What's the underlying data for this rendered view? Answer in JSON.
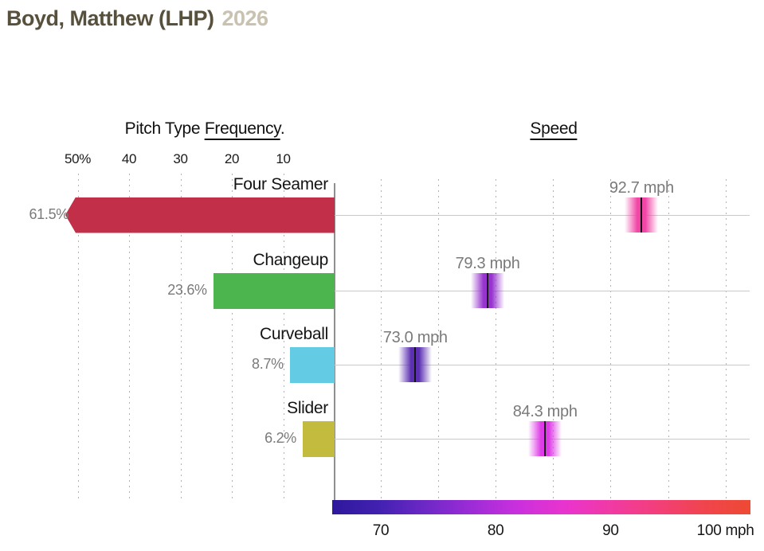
{
  "header": {
    "player_name": "Boyd, Matthew (LHP)",
    "season": "2026"
  },
  "panels": {
    "frequency": {
      "heading_prefix": "Pitch Type ",
      "heading_underlined": "Frequency",
      "heading_suffix": "."
    },
    "speed": {
      "heading": "Speed"
    }
  },
  "chart_data": {
    "type": "bar",
    "orientation": "horizontal",
    "title": "Pitch Type Frequency and Speed",
    "categories": [
      "Four Seamer",
      "Changeup",
      "Curveball",
      "Slider"
    ],
    "series": [
      {
        "name": "Pitch Type Frequency",
        "unit": "%",
        "values": [
          61.5,
          23.6,
          8.7,
          6.2
        ]
      },
      {
        "name": "Speed",
        "unit": "mph",
        "values": [
          92.7,
          79.3,
          73.0,
          84.3
        ]
      }
    ],
    "frequency_axis": {
      "direction": "right-to-left",
      "ticks": [
        50,
        40,
        30,
        20,
        10
      ],
      "tick_labels": [
        "50%",
        "40",
        "30",
        "20",
        "10"
      ],
      "max_displayed_pct": 52.4,
      "overflow_indicator": "left-pointing-arrow",
      "gridlines": "dashed"
    },
    "speed_axis": {
      "ticks": [
        70,
        80,
        90,
        100
      ],
      "tick_labels": [
        "70",
        "80",
        "90",
        "100 mph"
      ],
      "range_mph": [
        65.8,
        102.3
      ],
      "gridline_values_mph": [
        70,
        75,
        80,
        85,
        90,
        95,
        100
      ],
      "gridlines": "dashed"
    },
    "pitches": [
      {
        "name": "Four Seamer",
        "frequency_pct": 61.5,
        "frequency_label": "61.5%",
        "speed_mph": 92.7,
        "speed_label": "92.7 mph",
        "bar_color": "#c22f48",
        "marker_color": "#f146a6"
      },
      {
        "name": "Changeup",
        "frequency_pct": 23.6,
        "frequency_label": "23.6%",
        "speed_mph": 79.3,
        "speed_label": "79.3 mph",
        "bar_color": "#4cb54e",
        "marker_color": "#9733cf"
      },
      {
        "name": "Curveball",
        "frequency_pct": 8.7,
        "frequency_label": "8.7%",
        "speed_mph": 73.0,
        "speed_label": "73.0 mph",
        "bar_color": "#63cbe3",
        "marker_color": "#5c30b2"
      },
      {
        "name": "Slider",
        "frequency_pct": 6.2,
        "frequency_label": "6.2%",
        "speed_mph": 84.3,
        "speed_label": "84.3 mph",
        "bar_color": "#c3bb3d",
        "marker_color": "#de3ce6"
      }
    ],
    "speed_gradient": [
      "#2e189c",
      "#4121b0",
      "#6d28c6",
      "#9b2cd6",
      "#c930dd",
      "#e934cd",
      "#f13aa2",
      "#f23f78",
      "#f0444d",
      "#ee4a33"
    ],
    "legend": "none"
  }
}
